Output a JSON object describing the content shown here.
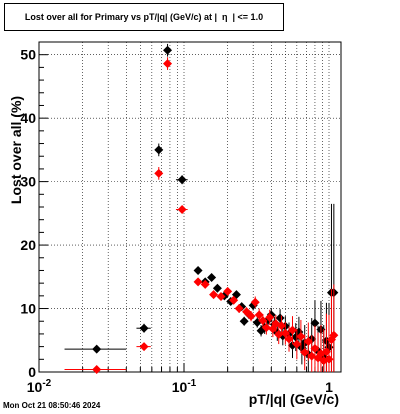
{
  "title_text": "Lost over all for Primary vs pT/|q| (GeV/c) at |  η  | <= 1.0",
  "timestamp": "Mon Oct 21 08:50:46 2024",
  "chart_data": {
    "type": "scatter",
    "title": "Lost over all for Primary vs pT/|q| (GeV/c) at |  η  | <= 1.0",
    "xlabel": "pT/|q| (GeV/c)",
    "ylabel": "Lost over all (%)",
    "xscale": "log",
    "xlim": [
      0.01,
      1.15
    ],
    "ylim": [
      0,
      52
    ],
    "grid": true,
    "x_tick_labels": [
      "10^-2",
      "10^-1",
      "1"
    ],
    "y_tick_labels": [
      "0",
      "10",
      "20",
      "30",
      "40",
      "50"
    ],
    "series": [
      {
        "color": "#000000",
        "points": [
          {
            "x": 0.025,
            "y": 3.6,
            "xerr": [
              0.01,
              0.015
            ],
            "yerr": 0.5
          },
          {
            "x": 0.053,
            "y": 6.9,
            "xerr": [
              0.006,
              0.006
            ],
            "yerr": 0.7
          },
          {
            "x": 0.067,
            "y": 35.0,
            "yerr": 1.0
          },
          {
            "x": 0.077,
            "y": 50.7,
            "yerr": 1.0
          },
          {
            "x": 0.097,
            "y": 30.3,
            "xerr": [
              0.009,
              0.009
            ],
            "yerr": 0.7
          },
          {
            "x": 0.125,
            "y": 16.0,
            "yerr": 0.6
          },
          {
            "x": 0.14,
            "y": 14.2,
            "yerr": 0.6
          },
          {
            "x": 0.155,
            "y": 14.9,
            "yerr": 0.6
          },
          {
            "x": 0.17,
            "y": 13.2,
            "yerr": 0.6
          },
          {
            "x": 0.19,
            "y": 12.0,
            "yerr": 0.6
          },
          {
            "x": 0.21,
            "y": 11.1,
            "yerr": 0.6
          },
          {
            "x": 0.23,
            "y": 12.2,
            "yerr": 0.6
          },
          {
            "x": 0.25,
            "y": 10.3,
            "yerr": 0.6
          },
          {
            "x": 0.26,
            "y": 8.0,
            "yerr": 0.7
          },
          {
            "x": 0.28,
            "y": 9.1,
            "yerr": 0.7
          },
          {
            "x": 0.3,
            "y": 10.5,
            "yerr": 0.8
          },
          {
            "x": 0.32,
            "y": 7.8,
            "yerr": 0.8
          },
          {
            "x": 0.34,
            "y": 6.5,
            "yerr": 0.9
          },
          {
            "x": 0.36,
            "y": 7.0,
            "yerr": 1.0
          },
          {
            "x": 0.38,
            "y": 8.2,
            "yerr": 1.0
          },
          {
            "x": 0.4,
            "y": 9.0,
            "yerr": 1.1
          },
          {
            "x": 0.42,
            "y": 7.5,
            "yerr": 1.2
          },
          {
            "x": 0.44,
            "y": 6.2,
            "yerr": 1.3
          },
          {
            "x": 0.46,
            "y": 8.5,
            "yerr": 1.4
          },
          {
            "x": 0.48,
            "y": 5.7,
            "yerr": 1.5
          },
          {
            "x": 0.5,
            "y": 7.2,
            "yerr": 1.6
          },
          {
            "x": 0.53,
            "y": 6.0,
            "yerr": 1.8
          },
          {
            "x": 0.56,
            "y": 4.2,
            "yerr": 2.0
          },
          {
            "x": 0.59,
            "y": 5.5,
            "yerr": 2.2
          },
          {
            "x": 0.62,
            "y": 6.3,
            "yerr": 2.4
          },
          {
            "x": 0.65,
            "y": 3.8,
            "yerr": 2.6
          },
          {
            "x": 0.68,
            "y": 4.6,
            "yerr": 2.8
          },
          {
            "x": 0.72,
            "y": 2.8,
            "yerr": 3.0
          },
          {
            "x": 0.76,
            "y": 5.2,
            "yerr": 3.3
          },
          {
            "x": 0.8,
            "y": 7.7,
            "yerr": 3.6
          },
          {
            "x": 0.84,
            "y": 3.3,
            "yerr": 4.0
          },
          {
            "x": 0.88,
            "y": 6.7,
            "yerr": 4.5
          },
          {
            "x": 0.92,
            "y": 2.4,
            "yerr": 5.0
          },
          {
            "x": 0.96,
            "y": 4.9,
            "yerr": 6.0
          },
          {
            "x": 1.0,
            "y": 3.9,
            "yerr": 7.0
          },
          {
            "x": 1.04,
            "y": 12.5,
            "yerr": 14.0
          },
          {
            "x": 1.08,
            "y": 12.5,
            "yerr": 14.0
          }
        ]
      },
      {
        "color": "#ff0000",
        "points": [
          {
            "x": 0.025,
            "y": 0.4,
            "xerr": [
              0.01,
              0.015
            ],
            "yerr": 0.2
          },
          {
            "x": 0.053,
            "y": 4.0,
            "xerr": [
              0.006,
              0.006
            ],
            "yerr": 0.5
          },
          {
            "x": 0.067,
            "y": 31.3,
            "yerr": 1.0
          },
          {
            "x": 0.077,
            "y": 48.6,
            "yerr": 1.0
          },
          {
            "x": 0.097,
            "y": 25.6,
            "xerr": [
              0.009,
              0.009
            ],
            "yerr": 0.6
          },
          {
            "x": 0.125,
            "y": 14.2,
            "yerr": 0.6
          },
          {
            "x": 0.14,
            "y": 13.8,
            "yerr": 0.6
          },
          {
            "x": 0.16,
            "y": 12.2,
            "yerr": 0.6
          },
          {
            "x": 0.18,
            "y": 11.9,
            "yerr": 0.6
          },
          {
            "x": 0.2,
            "y": 12.7,
            "yerr": 0.6
          },
          {
            "x": 0.22,
            "y": 11.3,
            "yerr": 0.6
          },
          {
            "x": 0.24,
            "y": 10.0,
            "yerr": 0.7
          },
          {
            "x": 0.27,
            "y": 9.5,
            "yerr": 0.7
          },
          {
            "x": 0.29,
            "y": 8.8,
            "yerr": 0.8
          },
          {
            "x": 0.31,
            "y": 11.0,
            "yerr": 0.9
          },
          {
            "x": 0.33,
            "y": 9.0,
            "yerr": 1.0
          },
          {
            "x": 0.35,
            "y": 8.1,
            "yerr": 1.0
          },
          {
            "x": 0.37,
            "y": 7.0,
            "yerr": 1.1
          },
          {
            "x": 0.39,
            "y": 8.6,
            "yerr": 1.2
          },
          {
            "x": 0.41,
            "y": 6.8,
            "yerr": 1.3
          },
          {
            "x": 0.43,
            "y": 7.6,
            "yerr": 1.4
          },
          {
            "x": 0.45,
            "y": 5.9,
            "yerr": 1.5
          },
          {
            "x": 0.47,
            "y": 7.3,
            "yerr": 1.6
          },
          {
            "x": 0.5,
            "y": 6.1,
            "yerr": 1.8
          },
          {
            "x": 0.53,
            "y": 5.2,
            "yerr": 2.0
          },
          {
            "x": 0.56,
            "y": 6.6,
            "yerr": 2.2
          },
          {
            "x": 0.6,
            "y": 4.4,
            "yerr": 2.4
          },
          {
            "x": 0.64,
            "y": 5.6,
            "yerr": 2.6
          },
          {
            "x": 0.68,
            "y": 3.1,
            "yerr": 2.8
          },
          {
            "x": 0.72,
            "y": 4.8,
            "yerr": 3.0
          },
          {
            "x": 0.76,
            "y": 2.5,
            "yerr": 3.3
          },
          {
            "x": 0.8,
            "y": 3.7,
            "yerr": 3.6
          },
          {
            "x": 0.84,
            "y": 2.2,
            "yerr": 4.0
          },
          {
            "x": 0.88,
            "y": 2.9,
            "yerr": 4.5
          },
          {
            "x": 0.92,
            "y": 1.8,
            "yerr": 5.0
          },
          {
            "x": 0.96,
            "y": 3.2,
            "yerr": 6.0
          },
          {
            "x": 1.0,
            "y": 2.0,
            "yerr": 7.0
          },
          {
            "x": 1.04,
            "y": 5.1,
            "yerr": 8.0
          },
          {
            "x": 1.08,
            "y": 5.8,
            "yerr": 8.0
          }
        ]
      }
    ]
  }
}
